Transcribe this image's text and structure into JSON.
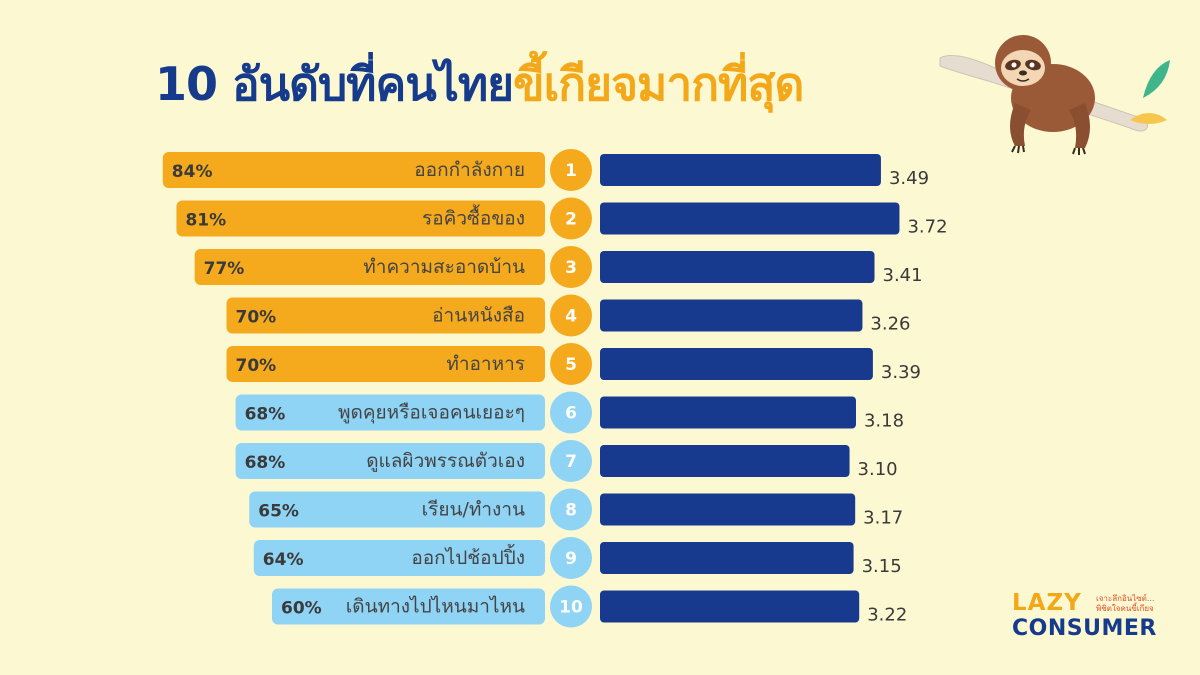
{
  "title": {
    "part1": "10 อันดับที่คนไทย",
    "part2": "ขี้เกียจมากที่สุด"
  },
  "colors": {
    "background": "#fbf8d2",
    "title_blue": "#163a8c",
    "title_orange": "#f3a81a",
    "bar_orange": "#f5aa1e",
    "bar_lightblue": "#8fd3f5",
    "bar_navy": "#173a8e"
  },
  "chart_data": {
    "type": "bar",
    "ranks": [
      "1",
      "2",
      "3",
      "4",
      "5",
      "6",
      "7",
      "8",
      "9",
      "10"
    ],
    "categories": [
      "ออกกำลังกาย",
      "รอคิวซื้อของ",
      "ทำความสะอาดบ้าน",
      "อ่านหนังสือ",
      "ทำอาหาร",
      "พูดคุยหรือเจอคนเยอะๆ",
      "ดูแลผิวพรรณตัวเอง",
      "เรียน/ทำงาน",
      "ออกไปช้อปปิ้ง",
      "เดินทางไปไหนมาไหน"
    ],
    "percent_labels": [
      "84%",
      "81%",
      "77%",
      "70%",
      "70%",
      "68%",
      "68%",
      "65%",
      "64%",
      "60%"
    ],
    "series": [
      {
        "values": [
          84,
          81,
          77,
          70,
          70,
          68,
          68,
          65,
          64,
          60
        ],
        "color": "mixed: orange for ranks 1-5, light blue for ranks 6-10"
      },
      {
        "values": [
          3.49,
          3.72,
          3.41,
          3.26,
          3.39,
          3.18,
          3.1,
          3.17,
          3.15,
          3.22
        ],
        "color": "#173a8e"
      }
    ],
    "score_labels": [
      "3.49",
      "3.72",
      "3.41",
      "3.26",
      "3.39",
      "3.18",
      "3.10",
      "3.17",
      "3.15",
      "3.22"
    ],
    "highlight_top": 5,
    "xlim_percent": [
      0,
      100
    ],
    "xlim_score": [
      0,
      4
    ]
  },
  "brand": {
    "lazy": "LAZY",
    "consumer": "CONSUMER",
    "tagline_1": "เจาะลึกอินไซต์...",
    "tagline_2": "พิชิตใจคนขี้เกียจ"
  },
  "illustration": {
    "icon": "sloth-on-branch-icon"
  }
}
